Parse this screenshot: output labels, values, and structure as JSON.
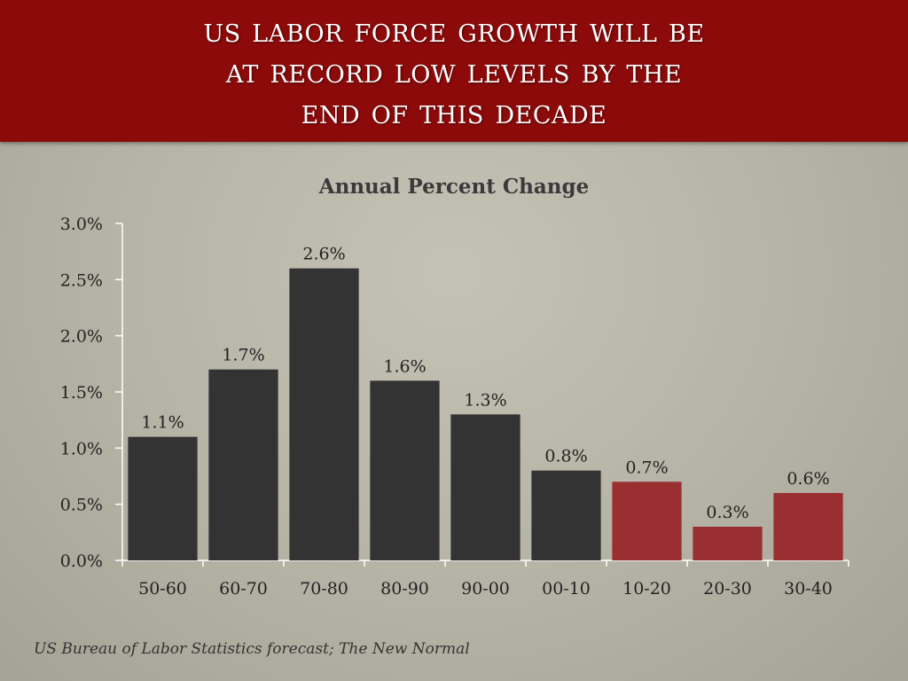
{
  "slide": {
    "title_lines": [
      "US Labor Force Growth Will Be",
      "At Record Low Levels By The",
      "End of This Decade"
    ],
    "source": "US Bureau of  Labor Statistics forecast; The New Normal"
  },
  "colors": {
    "banner": "#8c0a0a",
    "historical_bar": "#333333",
    "forecast_bar": "#9a2f32",
    "axis": "#ffffff",
    "text": "#222222"
  },
  "chart_data": {
    "type": "bar",
    "title": "Annual Percent Change",
    "categories": [
      "50-60",
      "60-70",
      "70-80",
      "80-90",
      "90-00",
      "00-10",
      "10-20",
      "20-30",
      "30-40"
    ],
    "values": [
      1.1,
      1.7,
      2.6,
      1.6,
      1.3,
      0.8,
      0.7,
      0.3,
      0.6
    ],
    "data_labels": [
      "1.1%",
      "1.7%",
      "2.6%",
      "1.6%",
      "1.3%",
      "0.8%",
      "0.7%",
      "0.3%",
      "0.6%"
    ],
    "forecast_from_index": 6,
    "ylim": [
      0,
      3.0
    ],
    "yticks": [
      0,
      0.5,
      1.0,
      1.5,
      2.0,
      2.5,
      3.0
    ],
    "ytick_labels": [
      "0.0%",
      "0.5%",
      "1.0%",
      "1.5%",
      "2.0%",
      "2.5%",
      "3.0%"
    ],
    "xlabel": "",
    "ylabel": "",
    "grid": false,
    "legend": "none"
  }
}
